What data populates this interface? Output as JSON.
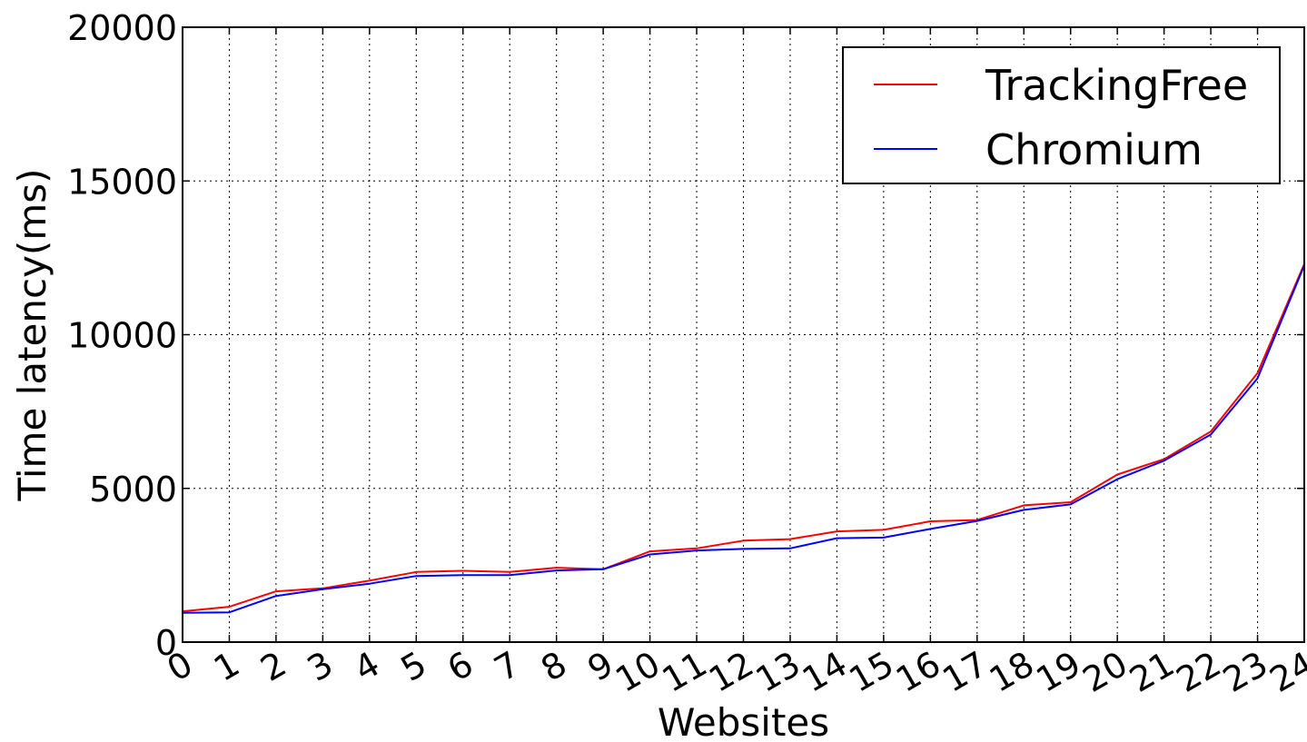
{
  "chart_data": {
    "type": "line",
    "xlabel": "Websites",
    "ylabel": "Time latency(ms)",
    "x": [
      0,
      1,
      2,
      3,
      4,
      5,
      6,
      7,
      8,
      9,
      10,
      11,
      12,
      13,
      14,
      15,
      16,
      17,
      18,
      19,
      20,
      21,
      22,
      23,
      24
    ],
    "xlim": [
      0,
      24
    ],
    "ylim": [
      0,
      20000
    ],
    "yticks": [
      0,
      5000,
      10000,
      15000,
      20000
    ],
    "grid": true,
    "legend_position": "top-right",
    "series": [
      {
        "name": "TrackingFree",
        "color": "#ff0000",
        "values": [
          1000,
          1150,
          1650,
          1750,
          2000,
          2280,
          2320,
          2280,
          2420,
          2370,
          2950,
          3050,
          3300,
          3350,
          3600,
          3650,
          3930,
          3970,
          4450,
          4550,
          5450,
          5950,
          6850,
          8750,
          12300
        ]
      },
      {
        "name": "Chromium",
        "color": "#0000ff",
        "values": [
          950,
          970,
          1500,
          1720,
          1900,
          2150,
          2180,
          2180,
          2330,
          2370,
          2850,
          2980,
          3030,
          3050,
          3380,
          3400,
          3680,
          3940,
          4300,
          4480,
          5300,
          5900,
          6750,
          8580,
          12250
        ]
      }
    ]
  }
}
